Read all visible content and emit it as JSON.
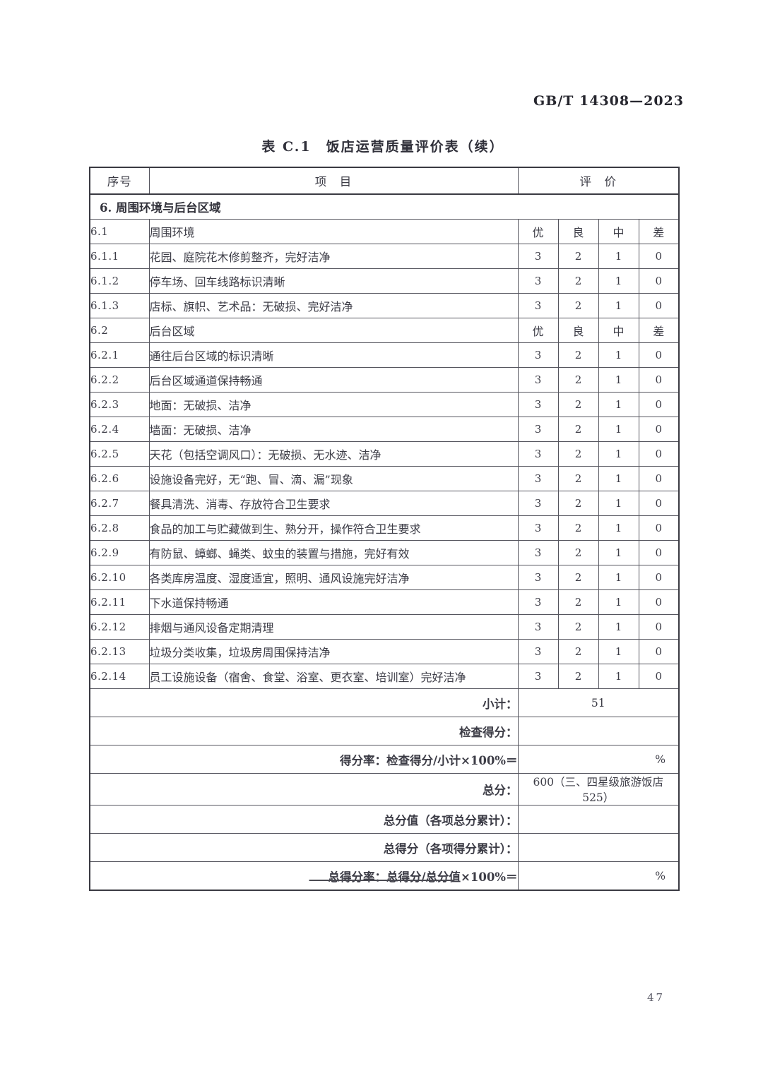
{
  "page": {
    "standard_code": "GB/T 14308—2023",
    "table_caption": "表 C.1　饭店运营质量评价表（续）",
    "page_number": "47"
  },
  "table": {
    "header": {
      "seq": "序号",
      "item": "项　目",
      "evaluation": "评　价"
    },
    "section_title": "6. 周围环境与后台区域",
    "rows": [
      {
        "kind": "grade",
        "seq": "6.1",
        "item": "周围环境",
        "cells": [
          "优",
          "良",
          "中",
          "差"
        ]
      },
      {
        "kind": "score",
        "seq": "6.1.1",
        "item": "花园、庭院花木修剪整齐，完好洁净",
        "cells": [
          "3",
          "2",
          "1",
          "0"
        ]
      },
      {
        "kind": "score",
        "seq": "6.1.2",
        "item": "停车场、回车线路标识清晰",
        "cells": [
          "3",
          "2",
          "1",
          "0"
        ]
      },
      {
        "kind": "score",
        "seq": "6.1.3",
        "item": "店标、旗帜、艺术品：无破损、完好洁净",
        "cells": [
          "3",
          "2",
          "1",
          "0"
        ]
      },
      {
        "kind": "grade",
        "seq": "6.2",
        "item": "后台区域",
        "cells": [
          "优",
          "良",
          "中",
          "差"
        ]
      },
      {
        "kind": "score",
        "seq": "6.2.1",
        "item": "通往后台区域的标识清晰",
        "cells": [
          "3",
          "2",
          "1",
          "0"
        ]
      },
      {
        "kind": "score",
        "seq": "6.2.2",
        "item": "后台区域通道保持畅通",
        "cells": [
          "3",
          "2",
          "1",
          "0"
        ]
      },
      {
        "kind": "score",
        "seq": "6.2.3",
        "item": "地面：无破损、洁净",
        "cells": [
          "3",
          "2",
          "1",
          "0"
        ]
      },
      {
        "kind": "score",
        "seq": "6.2.4",
        "item": "墙面：无破损、洁净",
        "cells": [
          "3",
          "2",
          "1",
          "0"
        ]
      },
      {
        "kind": "score",
        "seq": "6.2.5",
        "item": "天花（包括空调风口）：无破损、无水迹、洁净",
        "cells": [
          "3",
          "2",
          "1",
          "0"
        ]
      },
      {
        "kind": "score",
        "seq": "6.2.6",
        "item": "设施设备完好，无“跑、冒、滴、漏”现象",
        "cells": [
          "3",
          "2",
          "1",
          "0"
        ]
      },
      {
        "kind": "score",
        "seq": "6.2.7",
        "item": "餐具清洗、消毒、存放符合卫生要求",
        "cells": [
          "3",
          "2",
          "1",
          "0"
        ]
      },
      {
        "kind": "score",
        "seq": "6.2.8",
        "item": "食品的加工与贮藏做到生、熟分开，操作符合卫生要求",
        "cells": [
          "3",
          "2",
          "1",
          "0"
        ]
      },
      {
        "kind": "score",
        "seq": "6.2.9",
        "item": "有防鼠、蟑螂、蝇类、蚊虫的装置与措施，完好有效",
        "cells": [
          "3",
          "2",
          "1",
          "0"
        ]
      },
      {
        "kind": "score",
        "seq": "6.2.10",
        "item": "各类库房温度、湿度适宜，照明、通风设施完好洁净",
        "cells": [
          "3",
          "2",
          "1",
          "0"
        ]
      },
      {
        "kind": "score",
        "seq": "6.2.11",
        "item": "下水道保持畅通",
        "cells": [
          "3",
          "2",
          "1",
          "0"
        ]
      },
      {
        "kind": "score",
        "seq": "6.2.12",
        "item": "排烟与通风设备定期清理",
        "cells": [
          "3",
          "2",
          "1",
          "0"
        ]
      },
      {
        "kind": "score",
        "seq": "6.2.13",
        "item": "垃圾分类收集，垃圾房周围保持洁净",
        "cells": [
          "3",
          "2",
          "1",
          "0"
        ]
      },
      {
        "kind": "score",
        "seq": "6.2.14",
        "item": "员工设施设备（宿舍、食堂、浴室、更衣室、培训室）完好洁净",
        "cells": [
          "3",
          "2",
          "1",
          "0"
        ]
      }
    ],
    "summary_rows": [
      {
        "label": "小计：",
        "value": "51",
        "value_align": "center"
      },
      {
        "label": "检查得分：",
        "value": "",
        "value_align": "center"
      },
      {
        "label": "得分率：检查得分/小计×100%＝",
        "value": "%",
        "value_align": "right"
      },
      {
        "label": "总分：",
        "value": "600（三、四星级旅游饭店 525）",
        "value_align": "center"
      },
      {
        "label": "总分值（各项总分累计）：",
        "value": "",
        "value_align": "center"
      },
      {
        "label": "总得分（各项得分累计）：",
        "value": "",
        "value_align": "center"
      },
      {
        "label": "总得分率：总得分/总分值×100%＝",
        "value": "%",
        "value_align": "right"
      }
    ]
  },
  "colors": {
    "text": "#3c3c46",
    "border_outer": "#3a3a42",
    "border_inner": "#55555e",
    "background": "#ffffff"
  }
}
